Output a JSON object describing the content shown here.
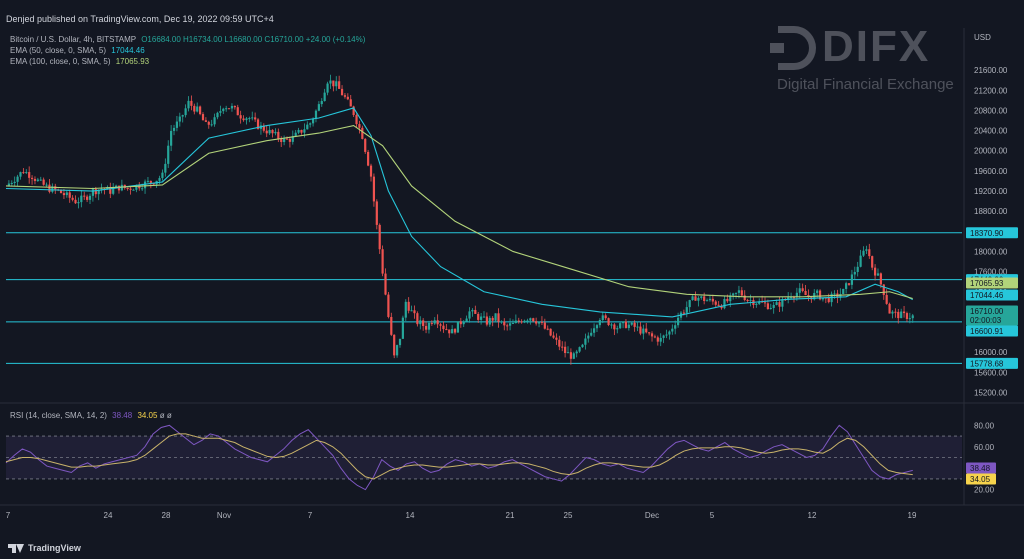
{
  "header": {
    "published": "Denjed published on TradingView.com, Dec 19, 2022 09:59 UTC+4"
  },
  "legend": {
    "symbol": "Bitcoin / U.S. Dollar, 4h, BITSTAMP",
    "ohlc": "O16684.00  H16734.00  L16680.00  C16710.00  +24.00 (+0.14%)",
    "ema50_label": "EMA (50, close, 0, SMA, 5)",
    "ema50_value": "17044.46",
    "ema100_label": "EMA (100, close, 0, SMA, 5)",
    "ema100_value": "17065.93"
  },
  "rsi_legend": {
    "label": "RSI (14, close, SMA, 14, 2)",
    "rsi_value": "38.48",
    "sma_value": "34.05",
    "icons": "ø ø"
  },
  "watermark": {
    "brand": "DIFX",
    "tagline": "Digital Financial Exchange"
  },
  "footer": {
    "logo_text": "TradingView"
  },
  "colors": {
    "background": "#131722",
    "up": "#26a69a",
    "down": "#ef5350",
    "ema50": "#26c6da",
    "ema100": "#b2d37a",
    "hline": "#26c6da",
    "rsi": "#7e57c2",
    "rsi_ma": "#c9b36a"
  },
  "chart_data": {
    "type": "candlestick",
    "currency_label": "USD",
    "price_axis": {
      "ticks": [
        "21600.00",
        "21200.00",
        "20800.00",
        "20400.00",
        "20000.00",
        "19600.00",
        "19200.00",
        "18800.00",
        "18400.00",
        "18000.00",
        "17600.00",
        "17200.00",
        "16800.00",
        "16400.00",
        "16000.00",
        "15600.00",
        "15200.00"
      ],
      "range": [
        15150,
        22000
      ]
    },
    "time_axis": {
      "labels": [
        "7",
        "24",
        "28",
        "Nov",
        "7",
        "14",
        "21",
        "25",
        "Dec",
        "5",
        "12",
        "19"
      ]
    },
    "horizontal_levels": [
      {
        "value": 18370.9,
        "label": "18370.90"
      },
      {
        "value": 17440.9,
        "label": "17440.90"
      },
      {
        "value": 16600.91,
        "label": "16600.91"
      },
      {
        "value": 15778.68,
        "label": "15778.68"
      }
    ],
    "price_tags": [
      {
        "label": "18370.90",
        "kind": "level"
      },
      {
        "label": "17440.90",
        "kind": "level"
      },
      {
        "label": "17065.93",
        "kind": "ema100"
      },
      {
        "label": "17044.46",
        "kind": "ema50"
      },
      {
        "label": "16710.00",
        "kind": "last"
      },
      {
        "label": "02:00:03",
        "kind": "countdown"
      },
      {
        "label": "16600.91",
        "kind": "level"
      },
      {
        "label": "15778.68",
        "kind": "level"
      }
    ],
    "close_path": [
      [
        0,
        19300
      ],
      [
        3,
        19450
      ],
      [
        6,
        19600
      ],
      [
        9,
        19500
      ],
      [
        12,
        19350
      ],
      [
        15,
        19250
      ],
      [
        18,
        19200
      ],
      [
        21,
        19100
      ],
      [
        24,
        19000
      ],
      [
        27,
        19050
      ],
      [
        30,
        19200
      ],
      [
        33,
        19250
      ],
      [
        36,
        19200
      ],
      [
        39,
        19280
      ],
      [
        42,
        19250
      ],
      [
        45,
        19300
      ],
      [
        48,
        19350
      ],
      [
        51,
        19400
      ],
      [
        54,
        19500
      ],
      [
        57,
        20400
      ],
      [
        60,
        20600
      ],
      [
        63,
        20950
      ],
      [
        66,
        20800
      ],
      [
        69,
        20500
      ],
      [
        72,
        20600
      ],
      [
        75,
        20900
      ],
      [
        78,
        20850
      ],
      [
        81,
        20700
      ],
      [
        84,
        20650
      ],
      [
        87,
        20500
      ],
      [
        90,
        20400
      ],
      [
        93,
        20300
      ],
      [
        96,
        20200
      ],
      [
        99,
        20250
      ],
      [
        102,
        20400
      ],
      [
        105,
        20550
      ],
      [
        108,
        20900
      ],
      [
        111,
        21400
      ],
      [
        114,
        21300
      ],
      [
        117,
        21050
      ],
      [
        120,
        20750
      ],
      [
        123,
        20300
      ],
      [
        126,
        19500
      ],
      [
        128,
        18500
      ],
      [
        130,
        17600
      ],
      [
        132,
        16700
      ],
      [
        134,
        15900
      ],
      [
        136,
        16300
      ],
      [
        138,
        17000
      ],
      [
        140,
        16800
      ],
      [
        142,
        16600
      ],
      [
        145,
        16500
      ],
      [
        148,
        16700
      ],
      [
        151,
        16500
      ],
      [
        154,
        16400
      ],
      [
        157,
        16600
      ],
      [
        160,
        16800
      ],
      [
        163,
        16700
      ],
      [
        166,
        16600
      ],
      [
        169,
        16700
      ],
      [
        172,
        16500
      ],
      [
        175,
        16550
      ],
      [
        178,
        16650
      ],
      [
        181,
        16700
      ],
      [
        184,
        16600
      ],
      [
        187,
        16400
      ],
      [
        190,
        16200
      ],
      [
        193,
        16000
      ],
      [
        196,
        15900
      ],
      [
        199,
        16100
      ],
      [
        202,
        16450
      ],
      [
        205,
        16700
      ],
      [
        208,
        16600
      ],
      [
        211,
        16500
      ],
      [
        214,
        16550
      ],
      [
        217,
        16500
      ],
      [
        220,
        16400
      ],
      [
        223,
        16300
      ],
      [
        226,
        16250
      ],
      [
        229,
        16400
      ],
      [
        232,
        16700
      ],
      [
        235,
        16900
      ],
      [
        238,
        17100
      ],
      [
        241,
        17050
      ],
      [
        244,
        17000
      ],
      [
        247,
        16950
      ],
      [
        250,
        17050
      ],
      [
        253,
        17200
      ],
      [
        256,
        17050
      ],
      [
        259,
        17000
      ],
      [
        262,
        16950
      ],
      [
        265,
        16900
      ],
      [
        268,
        17000
      ],
      [
        271,
        17150
      ],
      [
        274,
        17200
      ],
      [
        277,
        17100
      ],
      [
        280,
        17150
      ],
      [
        283,
        17050
      ],
      [
        286,
        17100
      ],
      [
        289,
        17200
      ],
      [
        292,
        17500
      ],
      [
        295,
        17850
      ],
      [
        297,
        18100
      ],
      [
        299,
        17700
      ],
      [
        301,
        17500
      ],
      [
        303,
        17200
      ],
      [
        305,
        16800
      ],
      [
        307,
        16750
      ],
      [
        310,
        16720
      ],
      [
        313,
        16710
      ]
    ],
    "ema50_path": [
      [
        0,
        19250
      ],
      [
        30,
        19200
      ],
      [
        54,
        19380
      ],
      [
        70,
        20250
      ],
      [
        90,
        20500
      ],
      [
        108,
        20650
      ],
      [
        120,
        20850
      ],
      [
        126,
        20300
      ],
      [
        132,
        19200
      ],
      [
        140,
        18300
      ],
      [
        150,
        17700
      ],
      [
        165,
        17200
      ],
      [
        185,
        16950
      ],
      [
        205,
        16800
      ],
      [
        230,
        16700
      ],
      [
        250,
        16950
      ],
      [
        270,
        17050
      ],
      [
        290,
        17100
      ],
      [
        300,
        17350
      ],
      [
        308,
        17200
      ],
      [
        313,
        17044
      ]
    ],
    "ema100_path": [
      [
        0,
        19300
      ],
      [
        30,
        19250
      ],
      [
        54,
        19320
      ],
      [
        70,
        19950
      ],
      [
        90,
        20200
      ],
      [
        108,
        20350
      ],
      [
        120,
        20500
      ],
      [
        130,
        20100
      ],
      [
        140,
        19300
      ],
      [
        155,
        18600
      ],
      [
        175,
        18000
      ],
      [
        195,
        17650
      ],
      [
        215,
        17300
      ],
      [
        235,
        17150
      ],
      [
        255,
        17100
      ],
      [
        275,
        17100
      ],
      [
        295,
        17150
      ],
      [
        305,
        17200
      ],
      [
        313,
        17066
      ]
    ],
    "rsi": {
      "levels": [
        70,
        50,
        30
      ],
      "axis_ticks": [
        "80.00",
        "60.00",
        "40.00",
        "20.00"
      ],
      "tags": [
        "38.48",
        "34.05"
      ],
      "range": [
        15,
        85
      ],
      "values": [
        45,
        52,
        58,
        55,
        48,
        42,
        40,
        38,
        36,
        42,
        45,
        40,
        44,
        46,
        48,
        50,
        52,
        60,
        72,
        78,
        80,
        74,
        68,
        62,
        66,
        72,
        70,
        64,
        58,
        54,
        50,
        48,
        46,
        52,
        58,
        66,
        72,
        76,
        68,
        60,
        52,
        40,
        30,
        24,
        20,
        32,
        48,
        42,
        38,
        44,
        46,
        40,
        36,
        38,
        44,
        48,
        46,
        42,
        44,
        40,
        42,
        46,
        48,
        44,
        40,
        36,
        32,
        30,
        28,
        34,
        42,
        50,
        48,
        44,
        42,
        44,
        40,
        38,
        36,
        42,
        50,
        58,
        64,
        66,
        62,
        58,
        56,
        60,
        64,
        58,
        54,
        50,
        52,
        56,
        60,
        62,
        58,
        54,
        50,
        52,
        58,
        70,
        80,
        74,
        62,
        50,
        38,
        32,
        30,
        34,
        36,
        38
      ],
      "ma": [
        46,
        48,
        50,
        50,
        49,
        47,
        45,
        43,
        41,
        41,
        42,
        42,
        43,
        44,
        45,
        46,
        48,
        52,
        58,
        64,
        70,
        72,
        72,
        70,
        68,
        68,
        68,
        66,
        64,
        60,
        57,
        54,
        51,
        50,
        51,
        54,
        58,
        62,
        66,
        64,
        60,
        54,
        46,
        38,
        32,
        30,
        34,
        38,
        40,
        42,
        43,
        43,
        42,
        41,
        41,
        42,
        43,
        44,
        44,
        43,
        43,
        44,
        45,
        45,
        44,
        42,
        40,
        37,
        35,
        34,
        36,
        40,
        43,
        45,
        45,
        44,
        43,
        42,
        41,
        41,
        43,
        47,
        52,
        56,
        58,
        59,
        59,
        59,
        60,
        60,
        59,
        57,
        55,
        54,
        55,
        57,
        58,
        58,
        57,
        55,
        54,
        58,
        64,
        68,
        66,
        60,
        52,
        44,
        38,
        36,
        35,
        34
      ]
    }
  }
}
